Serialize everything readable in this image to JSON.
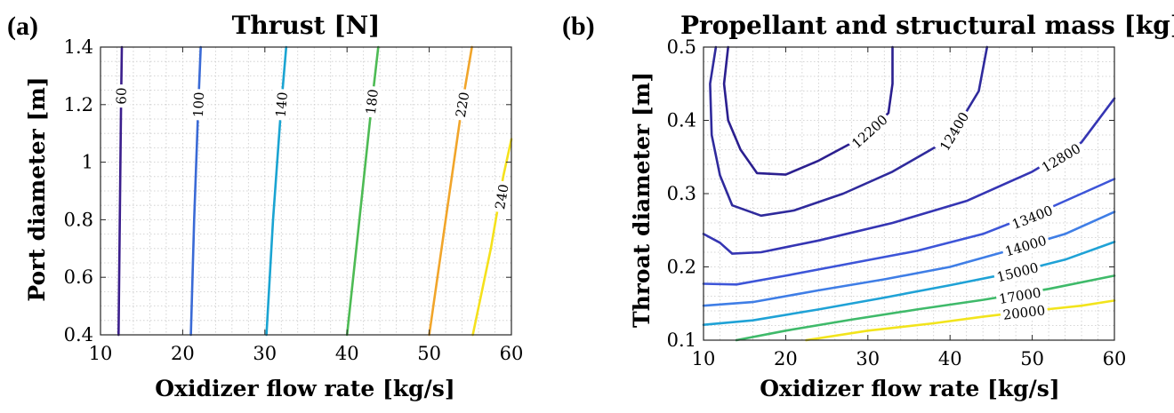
{
  "chart_data": [
    {
      "type": "contour",
      "panel_label": "(a)",
      "title": "Thrust [N]",
      "xlabel": "Oxidizer flow rate [kg/s]",
      "ylabel": "Port diameter [m]",
      "xlim": [
        10,
        60
      ],
      "ylim": [
        0.4,
        1.4
      ],
      "xticks": [
        "10",
        "20",
        "30",
        "40",
        "50",
        "60"
      ],
      "yticks": [
        "0.4",
        "0.6",
        "0.8",
        "1",
        "1.2",
        "1.4"
      ],
      "grid": true,
      "levels": [
        {
          "level": "60",
          "color": "#3b1e8c",
          "points": [
            [
              12.2,
              0.4
            ],
            [
              12.35,
              0.8
            ],
            [
              12.5,
              1.2
            ],
            [
              12.6,
              1.4
            ]
          ]
        },
        {
          "level": "100",
          "color": "#3a6ad6",
          "points": [
            [
              21.0,
              0.4
            ],
            [
              21.4,
              0.8
            ],
            [
              21.9,
              1.2
            ],
            [
              22.2,
              1.4
            ]
          ]
        },
        {
          "level": "140",
          "color": "#1aa4d2",
          "points": [
            [
              30.2,
              0.4
            ],
            [
              31.0,
              0.8
            ],
            [
              32.0,
              1.2
            ],
            [
              32.6,
              1.4
            ]
          ]
        },
        {
          "level": "180",
          "color": "#4dbb54",
          "points": [
            [
              40.0,
              0.4
            ],
            [
              41.5,
              0.8
            ],
            [
              43.0,
              1.2
            ],
            [
              43.8,
              1.4
            ]
          ]
        },
        {
          "level": "220",
          "color": "#f1a52a",
          "points": [
            [
              50.0,
              0.4
            ],
            [
              52.0,
              0.8
            ],
            [
              54.0,
              1.2
            ],
            [
              55.2,
              1.4
            ]
          ]
        },
        {
          "level": "240",
          "color": "#f5e11c",
          "points": [
            [
              55.3,
              0.4
            ],
            [
              57.5,
              0.7
            ],
            [
              59.0,
              0.95
            ],
            [
              60.0,
              1.08
            ]
          ]
        }
      ],
      "contour_labels": [
        {
          "text": "60",
          "x": 12.5,
          "y": 1.23
        },
        {
          "text": "100",
          "x": 21.9,
          "y": 1.2
        },
        {
          "text": "140",
          "x": 32.0,
          "y": 1.2
        },
        {
          "text": "180",
          "x": 43.0,
          "y": 1.21
        },
        {
          "text": "220",
          "x": 54.0,
          "y": 1.2
        },
        {
          "text": "240",
          "x": 58.8,
          "y": 0.88
        }
      ]
    },
    {
      "type": "contour",
      "panel_label": "(b)",
      "title": "Propellant and structural mass [kg]",
      "xlabel": "Oxidizer flow rate [kg/s]",
      "ylabel": "Throat diameter [m]",
      "xlim": [
        10,
        60
      ],
      "ylim": [
        0.1,
        0.5
      ],
      "xticks": [
        "10",
        "20",
        "30",
        "40",
        "50",
        "60"
      ],
      "yticks": [
        "0.1",
        "0.2",
        "0.3",
        "0.4",
        "0.5"
      ],
      "grid": true,
      "levels": [
        {
          "level": "12200",
          "color": "#2b1f8f",
          "points": [
            [
              13.0,
              0.5
            ],
            [
              12.5,
              0.45
            ],
            [
              13.0,
              0.4
            ],
            [
              14.5,
              0.36
            ],
            [
              16.5,
              0.328
            ],
            [
              20.0,
              0.326
            ],
            [
              24.0,
              0.345
            ],
            [
              29.0,
              0.375
            ],
            [
              32.5,
              0.41
            ],
            [
              33.0,
              0.45
            ],
            [
              33.0,
              0.5
            ]
          ]
        },
        {
          "level": "12400",
          "color": "#2f2a9c",
          "points": [
            [
              11.5,
              0.5
            ],
            [
              10.8,
              0.45
            ],
            [
              11.0,
              0.38
            ],
            [
              12.0,
              0.325
            ],
            [
              13.5,
              0.284
            ],
            [
              17.0,
              0.27
            ],
            [
              21.0,
              0.277
            ],
            [
              27.0,
              0.3
            ],
            [
              33.0,
              0.33
            ],
            [
              40.0,
              0.375
            ],
            [
              43.5,
              0.44
            ],
            [
              44.5,
              0.5
            ]
          ]
        },
        {
          "level": "12800",
          "color": "#3535b3",
          "points": [
            [
              10.0,
              0.245
            ],
            [
              12.0,
              0.233
            ],
            [
              13.5,
              0.218
            ],
            [
              17.0,
              0.22
            ],
            [
              24.0,
              0.236
            ],
            [
              33.0,
              0.26
            ],
            [
              42.0,
              0.29
            ],
            [
              50.0,
              0.33
            ],
            [
              56.0,
              0.37
            ],
            [
              60.0,
              0.43
            ]
          ]
        },
        {
          "level": "13400",
          "color": "#3d55d8",
          "points": [
            [
              10.0,
              0.177
            ],
            [
              14.0,
              0.176
            ],
            [
              20.0,
              0.188
            ],
            [
              28.0,
              0.205
            ],
            [
              36.0,
              0.222
            ],
            [
              44.0,
              0.245
            ],
            [
              52.0,
              0.28
            ],
            [
              60.0,
              0.32
            ]
          ]
        },
        {
          "level": "14000",
          "color": "#3f7ee6",
          "points": [
            [
              10.0,
              0.147
            ],
            [
              16.0,
              0.152
            ],
            [
              24.0,
              0.168
            ],
            [
              32.0,
              0.183
            ],
            [
              40.0,
              0.2
            ],
            [
              48.0,
              0.225
            ],
            [
              54.0,
              0.245
            ],
            [
              60.0,
              0.275
            ]
          ]
        },
        {
          "level": "15000",
          "color": "#1fa2d6",
          "points": [
            [
              10.0,
              0.121
            ],
            [
              16.0,
              0.127
            ],
            [
              24.0,
              0.142
            ],
            [
              32.0,
              0.158
            ],
            [
              40.0,
              0.175
            ],
            [
              48.0,
              0.193
            ],
            [
              54.0,
              0.21
            ],
            [
              60.0,
              0.234
            ]
          ]
        },
        {
          "level": "17000",
          "color": "#3fba6a",
          "points": [
            [
              14.0,
              0.1
            ],
            [
              20.0,
              0.113
            ],
            [
              28.0,
              0.128
            ],
            [
              36.0,
              0.142
            ],
            [
              44.0,
              0.155
            ],
            [
              52.0,
              0.17
            ],
            [
              60.0,
              0.188
            ]
          ]
        },
        {
          "level": "20000",
          "color": "#f2e41c",
          "points": [
            [
              22.5,
              0.1
            ],
            [
              30.0,
              0.113
            ],
            [
              38.0,
              0.123
            ],
            [
              44.0,
              0.132
            ],
            [
              50.0,
              0.14
            ],
            [
              56.0,
              0.147
            ],
            [
              60.0,
              0.154
            ]
          ]
        }
      ],
      "contour_labels": [
        {
          "text": "12200",
          "x": 30.2,
          "y": 0.385
        },
        {
          "text": "12400",
          "x": 40.5,
          "y": 0.385
        },
        {
          "text": "12800",
          "x": 53.5,
          "y": 0.349
        },
        {
          "text": "13400",
          "x": 50.0,
          "y": 0.268
        },
        {
          "text": "14000",
          "x": 49.2,
          "y": 0.229
        },
        {
          "text": "15000",
          "x": 48.2,
          "y": 0.193
        },
        {
          "text": "17000",
          "x": 48.5,
          "y": 0.161
        },
        {
          "text": "20000",
          "x": 49.0,
          "y": 0.138
        }
      ]
    }
  ]
}
